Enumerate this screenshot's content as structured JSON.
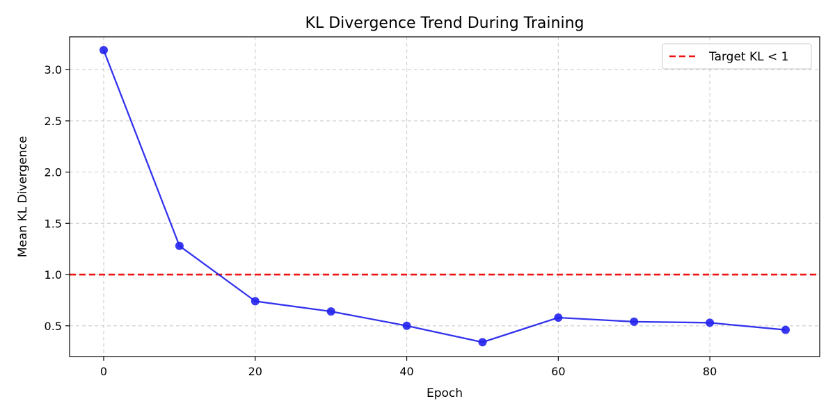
{
  "chart_data": {
    "type": "line",
    "title": "KL Divergence Trend During Training",
    "xlabel": "Epoch",
    "ylabel": "Mean KL Divergence",
    "xlim": [
      -4.5,
      94.5
    ],
    "ylim": [
      0.2,
      3.32
    ],
    "x_ticks": [
      0,
      20,
      40,
      60,
      80
    ],
    "y_ticks": [
      0.5,
      1.0,
      1.5,
      2.0,
      2.5,
      3.0
    ],
    "x_tick_labels": [
      "0",
      "20",
      "40",
      "60",
      "80"
    ],
    "y_tick_labels": [
      "0.5",
      "1.0",
      "1.5",
      "2.0",
      "2.5",
      "3.0"
    ],
    "grid": true,
    "legend_position": "top-right",
    "series": [
      {
        "x": [
          0,
          10,
          20,
          30,
          40,
          50,
          60,
          70,
          80,
          90
        ],
        "values": [
          3.19,
          1.28,
          0.74,
          0.64,
          0.5,
          0.34,
          0.58,
          0.54,
          0.53,
          0.46
        ],
        "color": "#2222ee",
        "marker": "circle"
      }
    ],
    "reference_lines": [
      {
        "name": "Target KL < 1",
        "y": 1.0,
        "color": "#ee1111",
        "style": "dashed"
      }
    ]
  }
}
